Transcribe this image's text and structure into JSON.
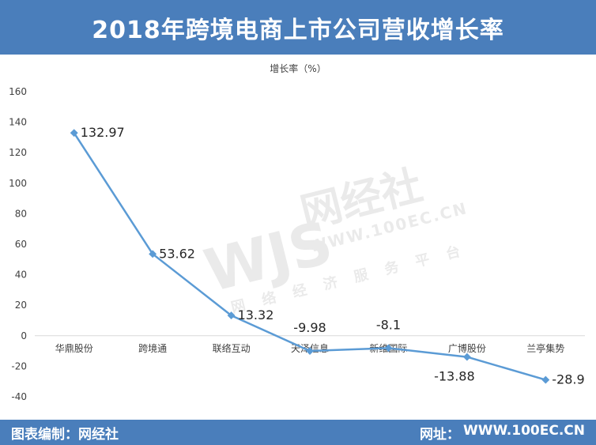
{
  "header": {
    "title": "2018年跨境电商上市公司营收增长率"
  },
  "footer": {
    "left_label": "图表编制：网经社",
    "right_prefix": "网址：",
    "right_value": "WWW.100EC.CN"
  },
  "watermark": {
    "mark": "WJS",
    "brand": "网经社",
    "url": "WWW.100EC.CN",
    "slogan": "网络经济服务平台"
  },
  "chart_data": {
    "type": "line",
    "title": "增长率（%）",
    "categories": [
      "华鼎股份",
      "跨境通",
      "联络互动",
      "天泽信息",
      "新维国际",
      "广博股份",
      "兰亭集势"
    ],
    "series": [
      {
        "values": [
          132.97,
          53.62,
          13.32,
          -9.98,
          -8.1,
          -13.88,
          -28.9
        ]
      }
    ],
    "data_labels": [
      "132.97",
      "53.62",
      "13.32",
      "-9.98",
      "-8.1",
      "-13.88",
      "-28.9"
    ],
    "ylim": [
      -40,
      160
    ],
    "yticks": [
      -40,
      -20,
      0,
      20,
      40,
      60,
      80,
      100,
      120,
      140,
      160
    ],
    "grid": false,
    "legend": "none",
    "colors": {
      "line": "#5b9bd5",
      "axis": "#d9d9d9",
      "text": "#404040",
      "label": "#262626"
    }
  }
}
